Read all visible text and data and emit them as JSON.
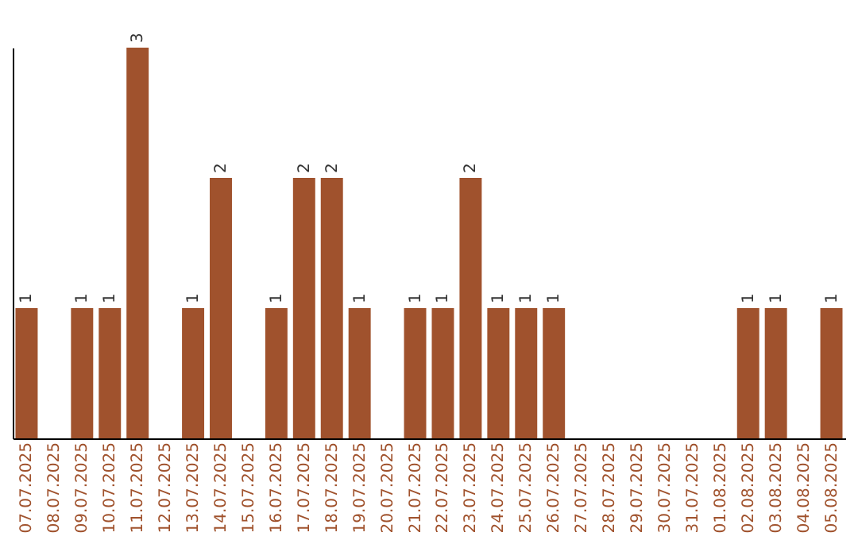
{
  "chart_data": {
    "type": "bar",
    "categories": [
      "07.07.2025",
      "08.07.2025",
      "09.07.2025",
      "10.07.2025",
      "11.07.2025",
      "12.07.2025",
      "13.07.2025",
      "14.07.2025",
      "15.07.2025",
      "16.07.2025",
      "17.07.2025",
      "18.07.2025",
      "19.07.2025",
      "20.07.2025",
      "21.07.2025",
      "22.07.2025",
      "23.07.2025",
      "24.07.2025",
      "25.07.2025",
      "26.07.2025",
      "27.07.2025",
      "28.07.2025",
      "29.07.2025",
      "30.07.2025",
      "31.07.2025",
      "01.08.2025",
      "02.08.2025",
      "03.08.2025",
      "04.08.2025",
      "05.08.2025"
    ],
    "values": [
      1,
      0,
      1,
      1,
      3,
      0,
      1,
      2,
      0,
      1,
      2,
      2,
      1,
      0,
      1,
      1,
      2,
      1,
      1,
      1,
      0,
      0,
      0,
      0,
      0,
      0,
      1,
      1,
      0,
      1
    ],
    "value_labels": [
      "1",
      null,
      "1",
      "1",
      "3",
      null,
      "1",
      "2",
      null,
      "1",
      "2",
      "2",
      "1",
      null,
      "1",
      "1",
      "2",
      "1",
      "1",
      "1",
      null,
      null,
      null,
      null,
      null,
      null,
      "1",
      "1",
      null,
      "1"
    ],
    "color": "#a0522d",
    "tick_labels": "x"
  }
}
